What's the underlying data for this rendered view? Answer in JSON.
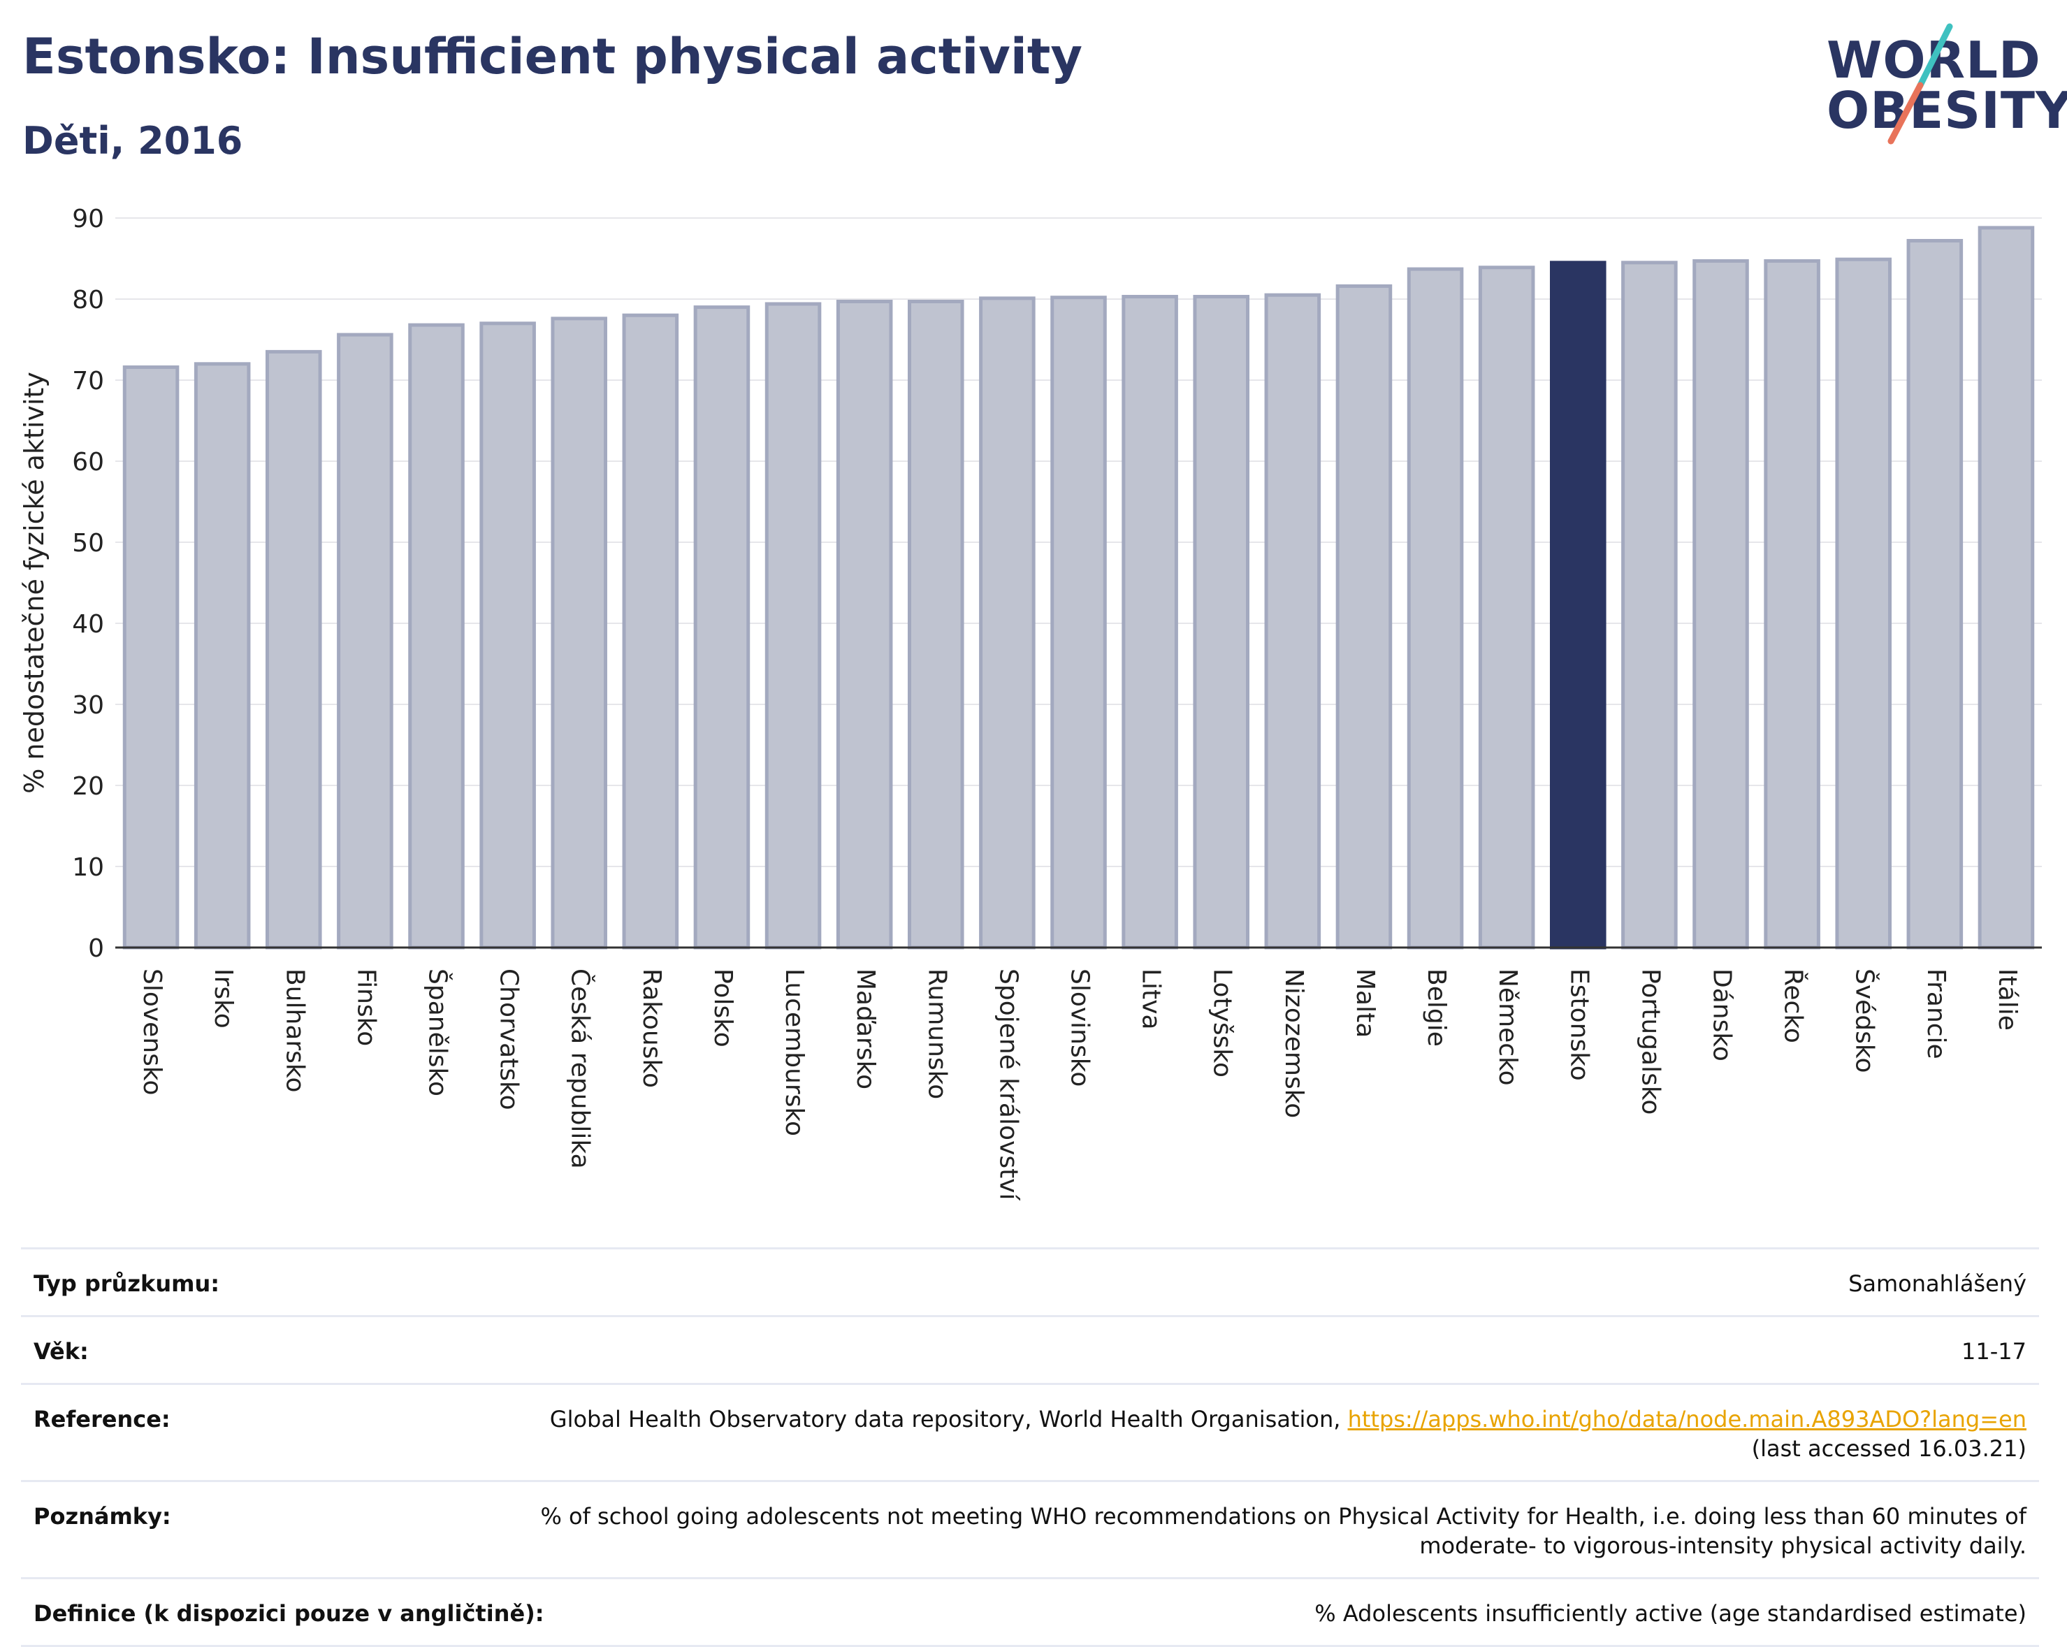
{
  "header": {
    "title": "Estonsko: Insufficient physical activity",
    "subtitle": "Děti, 2016"
  },
  "logo": {
    "line1": "WORLD",
    "line2": "OBESITY"
  },
  "colors": {
    "bar": "#bfc3d0",
    "bar_border": "#a3a9bf",
    "highlight": "#2a3562",
    "title": "#2a3562",
    "grid": "#e6e6ea",
    "link": "#e8a300"
  },
  "chart_data": {
    "type": "bar",
    "ylabel": "% nedostatečné fyzické aktivity",
    "ylim": [
      0,
      90
    ],
    "yticks": [
      0,
      10,
      20,
      30,
      40,
      50,
      60,
      70,
      80,
      90
    ],
    "grid": true,
    "highlight": "Estonsko",
    "categories": [
      "Slovensko",
      "Irsko",
      "Bulharsko",
      "Finsko",
      "Španělsko",
      "Chorvatsko",
      "Česká republika",
      "Rakousko",
      "Polsko",
      "Lucembursko",
      "Maďarsko",
      "Rumunsko",
      "Spojené království",
      "Slovinsko",
      "Litva",
      "Lotyšsko",
      "Nizozemsko",
      "Malta",
      "Belgie",
      "Německo",
      "Estonsko",
      "Portugalsko",
      "Dánsko",
      "Řecko",
      "Švédsko",
      "Francie",
      "Itálie"
    ],
    "values": [
      71.6,
      72.0,
      73.5,
      75.6,
      76.8,
      77.0,
      77.6,
      78.0,
      79.0,
      79.4,
      79.7,
      79.7,
      80.1,
      80.2,
      80.3,
      80.3,
      80.5,
      81.6,
      83.7,
      83.9,
      84.5,
      84.5,
      84.7,
      84.7,
      84.9,
      87.2,
      88.8
    ]
  },
  "info": {
    "survey_type": {
      "label": "Typ průzkumu:",
      "value": "Samonahlášený"
    },
    "age": {
      "label": "Věk:",
      "value": "11-17"
    },
    "reference": {
      "label": "Reference:",
      "text": "Global Health Observatory data repository, World Health Organisation, ",
      "link": "https://apps.who.int/gho/data/node.main.A893ADO?lang=en",
      "accessed": "(last accessed 16.03.21)"
    },
    "notes": {
      "label": "Poznámky:",
      "value": "% of school going adolescents not meeting WHO recommendations on Physical Activity for Health, i.e. doing less than 60 minutes of moderate- to vigorous-intensity physical activity daily."
    },
    "definition": {
      "label": "Definice (k dispozici pouze v angličtině):",
      "value": "% Adolescents insufficiently active (age standardised estimate)"
    }
  }
}
